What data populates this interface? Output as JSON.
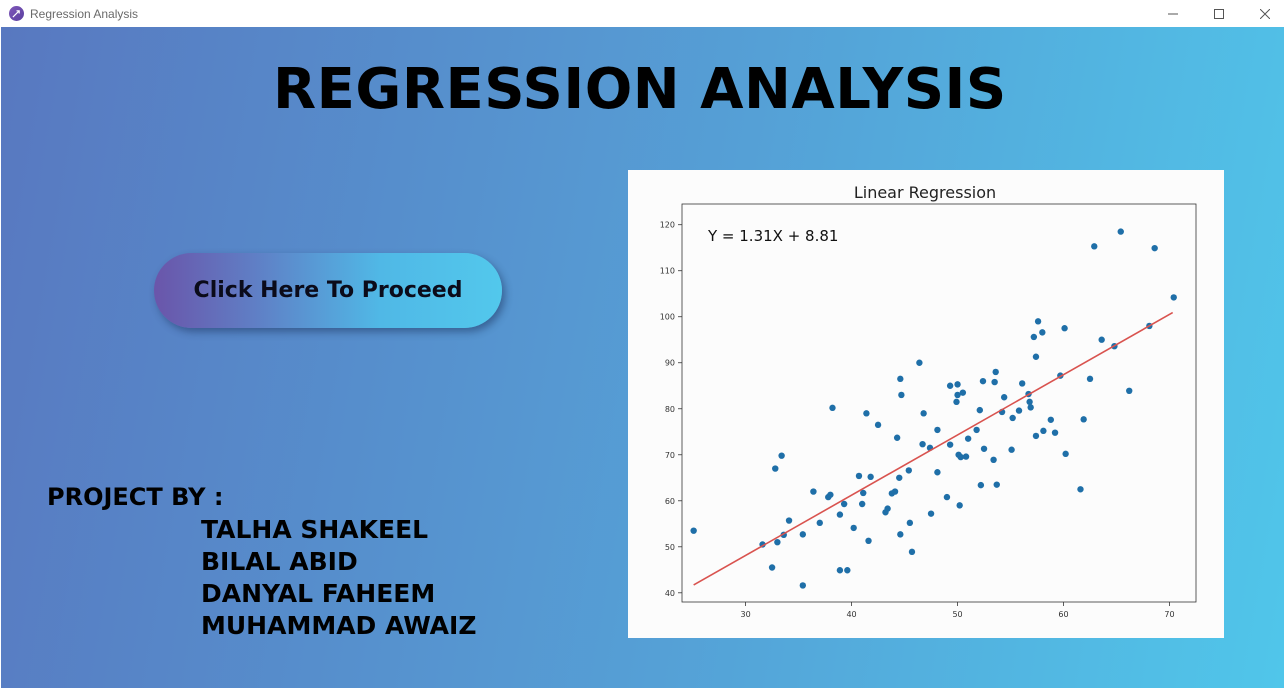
{
  "window": {
    "title": "Regression Analysis",
    "app_icon": "feather-pen-icon",
    "controls": [
      "minimize-icon",
      "maximize-icon",
      "close-icon"
    ]
  },
  "main": {
    "title": "REGRESSION ANALYSIS",
    "proceed_button": "Click Here To Proceed",
    "project_by_label": "PROJECT BY :",
    "members": [
      "TALHA SHAKEEL",
      "BILAL ABID",
      "DANYAL FAHEEM",
      "MUHAMMAD AWAIZ"
    ]
  },
  "colors": {
    "background_start": "#5878c0",
    "background_end": "#50c6ea",
    "point_color": "#1f6fa8",
    "line_color": "#d9534f"
  },
  "chart_data": {
    "type": "scatter",
    "title": "Linear Regression",
    "annotation": "Y = 1.31X + 8.81",
    "xlim": [
      24,
      72.5
    ],
    "ylim": [
      38,
      124.5
    ],
    "xticks": [
      30,
      40,
      50,
      60,
      70
    ],
    "yticks": [
      40,
      50,
      60,
      70,
      80,
      90,
      100,
      110,
      120
    ],
    "grid": false,
    "regression_line": {
      "x": [
        25.1,
        70.3
      ],
      "y": [
        41.7,
        100.9
      ]
    },
    "points": [
      [
        25.1,
        53.5
      ],
      [
        31.6,
        50.5
      ],
      [
        32.5,
        45.5
      ],
      [
        32.8,
        67
      ],
      [
        33,
        51
      ],
      [
        33.4,
        69.8
      ],
      [
        33.6,
        52.6
      ],
      [
        34.1,
        55.7
      ],
      [
        35.4,
        52.7
      ],
      [
        35.4,
        41.6
      ],
      [
        36.4,
        62
      ],
      [
        37,
        55.2
      ],
      [
        37.8,
        60.8
      ],
      [
        38,
        61.3
      ],
      [
        38.2,
        80.2
      ],
      [
        38.9,
        57
      ],
      [
        39.3,
        59.3
      ],
      [
        38.9,
        44.9
      ],
      [
        39.6,
        44.9
      ],
      [
        40.2,
        54.1
      ],
      [
        40.7,
        65.4
      ],
      [
        41.1,
        61.7
      ],
      [
        41,
        59.3
      ],
      [
        41.4,
        79
      ],
      [
        41.6,
        51.3
      ],
      [
        41.8,
        65.2
      ],
      [
        42.5,
        76.5
      ],
      [
        43.2,
        57.5
      ],
      [
        43.4,
        58.3
      ],
      [
        43.8,
        61.6
      ],
      [
        44.1,
        62
      ],
      [
        44.3,
        73.7
      ],
      [
        44.6,
        52.7
      ],
      [
        44.5,
        65
      ],
      [
        44.6,
        86.5
      ],
      [
        44.7,
        83
      ],
      [
        45.4,
        66.6
      ],
      [
        45.5,
        55.2
      ],
      [
        45.7,
        48.9
      ],
      [
        46.4,
        90
      ],
      [
        46.8,
        79
      ],
      [
        46.7,
        72.3
      ],
      [
        47.4,
        71.5
      ],
      [
        47.5,
        57.2
      ],
      [
        48.1,
        66.2
      ],
      [
        48.1,
        75.4
      ],
      [
        49,
        60.8
      ],
      [
        49.3,
        72.2
      ],
      [
        49.3,
        85
      ],
      [
        49.9,
        81.5
      ],
      [
        50,
        85.3
      ],
      [
        50,
        83
      ],
      [
        50.1,
        70
      ],
      [
        50.2,
        59
      ],
      [
        50.3,
        69.5
      ],
      [
        50.5,
        83.5
      ],
      [
        50.8,
        69.6
      ],
      [
        51,
        73.5
      ],
      [
        51.8,
        75.4
      ],
      [
        52.1,
        79.7
      ],
      [
        52.2,
        63.4
      ],
      [
        52.4,
        86
      ],
      [
        52.5,
        71.3
      ],
      [
        53.4,
        68.9
      ],
      [
        53.5,
        85.8
      ],
      [
        53.6,
        88
      ],
      [
        53.7,
        63.5
      ],
      [
        54.2,
        79.3
      ],
      [
        54.4,
        82.5
      ],
      [
        55.1,
        71.1
      ],
      [
        55.2,
        78
      ],
      [
        55.8,
        79.6
      ],
      [
        56.1,
        85.5
      ],
      [
        56.7,
        83.2
      ],
      [
        56.8,
        81.5
      ],
      [
        56.9,
        80.3
      ],
      [
        57.2,
        95.6
      ],
      [
        57.4,
        91.3
      ],
      [
        57.4,
        74.1
      ],
      [
        57.6,
        99
      ],
      [
        58,
        96.6
      ],
      [
        58.1,
        75.2
      ],
      [
        58.8,
        77.6
      ],
      [
        59.2,
        74.8
      ],
      [
        59.7,
        87.2
      ],
      [
        60.1,
        97.5
      ],
      [
        60.2,
        70.2
      ],
      [
        61.6,
        62.5
      ],
      [
        61.9,
        77.7
      ],
      [
        62.5,
        86.5
      ],
      [
        62.9,
        115.3
      ],
      [
        63.6,
        95
      ],
      [
        64.8,
        93.6
      ],
      [
        65.4,
        118.5
      ],
      [
        66.2,
        83.9
      ],
      [
        68.1,
        98
      ],
      [
        68.6,
        114.9
      ],
      [
        70.4,
        104.2
      ]
    ]
  }
}
